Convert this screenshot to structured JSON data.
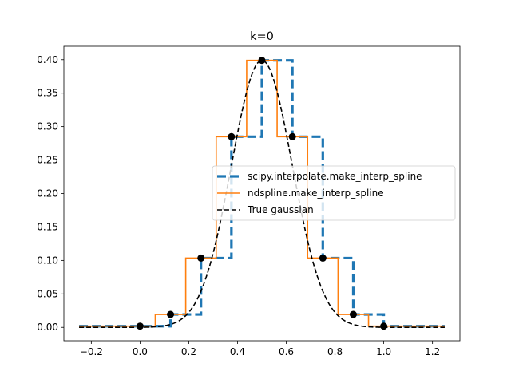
{
  "chart_data": {
    "type": "line",
    "title": "k=0",
    "xlabel": "",
    "ylabel": "",
    "xlim": [
      -0.3125,
      1.3125
    ],
    "ylim": [
      -0.02,
      0.42
    ],
    "xticks": [
      -0.2,
      0.0,
      0.2,
      0.4,
      0.6,
      0.8,
      1.0,
      1.2
    ],
    "xtick_labels": [
      "−0.2",
      "0.0",
      "0.2",
      "0.4",
      "0.6",
      "0.8",
      "1.0",
      "1.2"
    ],
    "yticks": [
      0.0,
      0.05,
      0.1,
      0.15,
      0.2,
      0.25,
      0.3,
      0.35,
      0.4
    ],
    "ytick_labels": [
      "0.00",
      "0.05",
      "0.10",
      "0.15",
      "0.20",
      "0.25",
      "0.30",
      "0.35",
      "0.40"
    ],
    "legend_position": "center-right",
    "series": [
      {
        "name": "scipy.interpolate.make_interp_spline",
        "color": "#1f77b4",
        "style": "dashed",
        "x": [
          -0.25,
          0.125,
          0.125,
          0.25,
          0.25,
          0.375,
          0.375,
          0.5,
          0.5,
          0.625,
          0.625,
          0.75,
          0.75,
          0.875,
          0.875,
          1.0,
          1.0,
          1.25
        ],
        "y": [
          0.0018,
          0.0018,
          0.0193,
          0.0193,
          0.1035,
          0.1035,
          0.2849,
          0.2849,
          0.3989,
          0.3989,
          0.2849,
          0.2849,
          0.1035,
          0.1035,
          0.0193,
          0.0193,
          0.0018,
          0.0018
        ]
      },
      {
        "name": "ndspline.make_interp_spline",
        "color": "#ff7f0e",
        "style": "solid",
        "x": [
          -0.25,
          0.0625,
          0.0625,
          0.1875,
          0.1875,
          0.3125,
          0.3125,
          0.4375,
          0.4375,
          0.5625,
          0.5625,
          0.6875,
          0.6875,
          0.8125,
          0.8125,
          0.9375,
          0.9375,
          1.25
        ],
        "y": [
          0.0018,
          0.0018,
          0.0193,
          0.0193,
          0.1035,
          0.1035,
          0.2849,
          0.2849,
          0.3989,
          0.3989,
          0.2849,
          0.2849,
          0.1035,
          0.1035,
          0.0193,
          0.0193,
          0.0018,
          0.0018
        ]
      },
      {
        "name": "True gaussian",
        "color": "#000000",
        "style": "dashed",
        "function": "gaussian",
        "mu": 0.5,
        "sigma": 0.125,
        "x_range": [
          -0.25,
          1.25
        ]
      }
    ],
    "points": {
      "color": "#000000",
      "x": [
        0.0,
        0.125,
        0.25,
        0.375,
        0.5,
        0.625,
        0.75,
        0.875,
        1.0
      ],
      "y": [
        0.0018,
        0.0193,
        0.1035,
        0.2849,
        0.3989,
        0.2849,
        0.1035,
        0.0193,
        0.0018
      ]
    }
  }
}
